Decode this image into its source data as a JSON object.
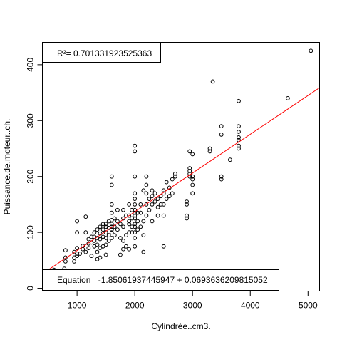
{
  "chart_data": {
    "type": "scatter",
    "title": "",
    "xlabel": "Cylindrée..cm3.",
    "ylabel": "Puissance.de.moteur..ch.",
    "xlim": [
      400,
      5200
    ],
    "ylim": [
      -5,
      440
    ],
    "xticks": [
      1000,
      2000,
      3000,
      4000,
      5000
    ],
    "yticks": [
      0,
      100,
      200,
      300,
      400
    ],
    "grid": false,
    "legend": "none",
    "annotations": {
      "r2": "R²= 0.701331923525363",
      "equation": "Equation= -1.85061937445947 + 0.0693636209815052"
    },
    "regression": {
      "intercept": -1.85061937445947,
      "slope": 0.0693636209815052,
      "color": "#ff0000"
    },
    "point_color": "#000000",
    "points": [
      [
        600,
        33
      ],
      [
        780,
        35
      ],
      [
        800,
        48
      ],
      [
        800,
        55
      ],
      [
        800,
        68
      ],
      [
        950,
        48
      ],
      [
        950,
        55
      ],
      [
        950,
        65
      ],
      [
        1000,
        58
      ],
      [
        1000,
        62
      ],
      [
        1000,
        72
      ],
      [
        1000,
        100
      ],
      [
        1000,
        120
      ],
      [
        1050,
        62
      ],
      [
        1100,
        70
      ],
      [
        1100,
        76
      ],
      [
        1150,
        65
      ],
      [
        1150,
        100
      ],
      [
        1150,
        128
      ],
      [
        1200,
        72
      ],
      [
        1200,
        80
      ],
      [
        1200,
        88
      ],
      [
        1250,
        58
      ],
      [
        1250,
        82
      ],
      [
        1250,
        92
      ],
      [
        1300,
        75
      ],
      [
        1300,
        85
      ],
      [
        1300,
        92
      ],
      [
        1300,
        100
      ],
      [
        1350,
        52
      ],
      [
        1350,
        65
      ],
      [
        1350,
        78
      ],
      [
        1350,
        90
      ],
      [
        1350,
        105
      ],
      [
        1400,
        55
      ],
      [
        1400,
        72
      ],
      [
        1400,
        88
      ],
      [
        1400,
        98
      ],
      [
        1400,
        110
      ],
      [
        1450,
        75
      ],
      [
        1450,
        92
      ],
      [
        1450,
        105
      ],
      [
        1450,
        115
      ],
      [
        1500,
        60
      ],
      [
        1500,
        78
      ],
      [
        1500,
        90
      ],
      [
        1500,
        100
      ],
      [
        1500,
        110
      ],
      [
        1500,
        115
      ],
      [
        1550,
        85
      ],
      [
        1550,
        95
      ],
      [
        1550,
        108
      ],
      [
        1550,
        120
      ],
      [
        1600,
        90
      ],
      [
        1600,
        100
      ],
      [
        1600,
        105
      ],
      [
        1600,
        110
      ],
      [
        1600,
        115
      ],
      [
        1600,
        122
      ],
      [
        1600,
        135
      ],
      [
        1600,
        150
      ],
      [
        1600,
        185
      ],
      [
        1600,
        200
      ],
      [
        1650,
        95
      ],
      [
        1650,
        110
      ],
      [
        1650,
        125
      ],
      [
        1700,
        105
      ],
      [
        1700,
        120
      ],
      [
        1700,
        140
      ],
      [
        1750,
        60
      ],
      [
        1750,
        90
      ],
      [
        1750,
        115
      ],
      [
        1800,
        70
      ],
      [
        1800,
        85
      ],
      [
        1800,
        110
      ],
      [
        1800,
        125
      ],
      [
        1800,
        140
      ],
      [
        1850,
        75
      ],
      [
        1850,
        95
      ],
      [
        1850,
        130
      ],
      [
        1900,
        70
      ],
      [
        1900,
        100
      ],
      [
        1900,
        115
      ],
      [
        1900,
        120
      ],
      [
        1900,
        130
      ],
      [
        1900,
        150
      ],
      [
        1950,
        100
      ],
      [
        1950,
        110
      ],
      [
        1950,
        125
      ],
      [
        1950,
        140
      ],
      [
        2000,
        75
      ],
      [
        2000,
        90
      ],
      [
        2000,
        100
      ],
      [
        2000,
        110
      ],
      [
        2000,
        115
      ],
      [
        2000,
        125
      ],
      [
        2000,
        130
      ],
      [
        2000,
        135
      ],
      [
        2000,
        140
      ],
      [
        2000,
        150
      ],
      [
        2000,
        160
      ],
      [
        2000,
        170
      ],
      [
        2000,
        200
      ],
      [
        2000,
        245
      ],
      [
        2000,
        255
      ],
      [
        2050,
        105
      ],
      [
        2050,
        120
      ],
      [
        2050,
        135
      ],
      [
        2100,
        110
      ],
      [
        2100,
        135
      ],
      [
        2100,
        150
      ],
      [
        2150,
        65
      ],
      [
        2150,
        95
      ],
      [
        2150,
        120
      ],
      [
        2150,
        175
      ],
      [
        2200,
        130
      ],
      [
        2200,
        150
      ],
      [
        2200,
        170
      ],
      [
        2200,
        185
      ],
      [
        2200,
        200
      ],
      [
        2250,
        140
      ],
      [
        2250,
        160
      ],
      [
        2300,
        120
      ],
      [
        2300,
        150
      ],
      [
        2300,
        165
      ],
      [
        2300,
        175
      ],
      [
        2350,
        155
      ],
      [
        2350,
        170
      ],
      [
        2400,
        130
      ],
      [
        2400,
        145
      ],
      [
        2400,
        160
      ],
      [
        2450,
        150
      ],
      [
        2450,
        165
      ],
      [
        2500,
        75
      ],
      [
        2500,
        130
      ],
      [
        2500,
        150
      ],
      [
        2500,
        170
      ],
      [
        2500,
        175
      ],
      [
        2550,
        160
      ],
      [
        2550,
        190
      ],
      [
        2600,
        165
      ],
      [
        2600,
        180
      ],
      [
        2650,
        170
      ],
      [
        2650,
        195
      ],
      [
        2700,
        200
      ],
      [
        2700,
        205
      ],
      [
        2900,
        125
      ],
      [
        2900,
        130
      ],
      [
        2900,
        150
      ],
      [
        2900,
        155
      ],
      [
        2950,
        200
      ],
      [
        2950,
        205
      ],
      [
        2950,
        210
      ],
      [
        2950,
        215
      ],
      [
        2950,
        245
      ],
      [
        3000,
        170
      ],
      [
        3000,
        185
      ],
      [
        3000,
        195
      ],
      [
        3000,
        200
      ],
      [
        3000,
        240
      ],
      [
        3300,
        245
      ],
      [
        3300,
        250
      ],
      [
        3350,
        370
      ],
      [
        3500,
        195
      ],
      [
        3500,
        200
      ],
      [
        3500,
        275
      ],
      [
        3500,
        290
      ],
      [
        3650,
        230
      ],
      [
        3800,
        250
      ],
      [
        3800,
        255
      ],
      [
        3800,
        265
      ],
      [
        3800,
        270
      ],
      [
        3800,
        280
      ],
      [
        3800,
        290
      ],
      [
        3800,
        335
      ],
      [
        4650,
        340
      ],
      [
        5050,
        425
      ]
    ]
  }
}
